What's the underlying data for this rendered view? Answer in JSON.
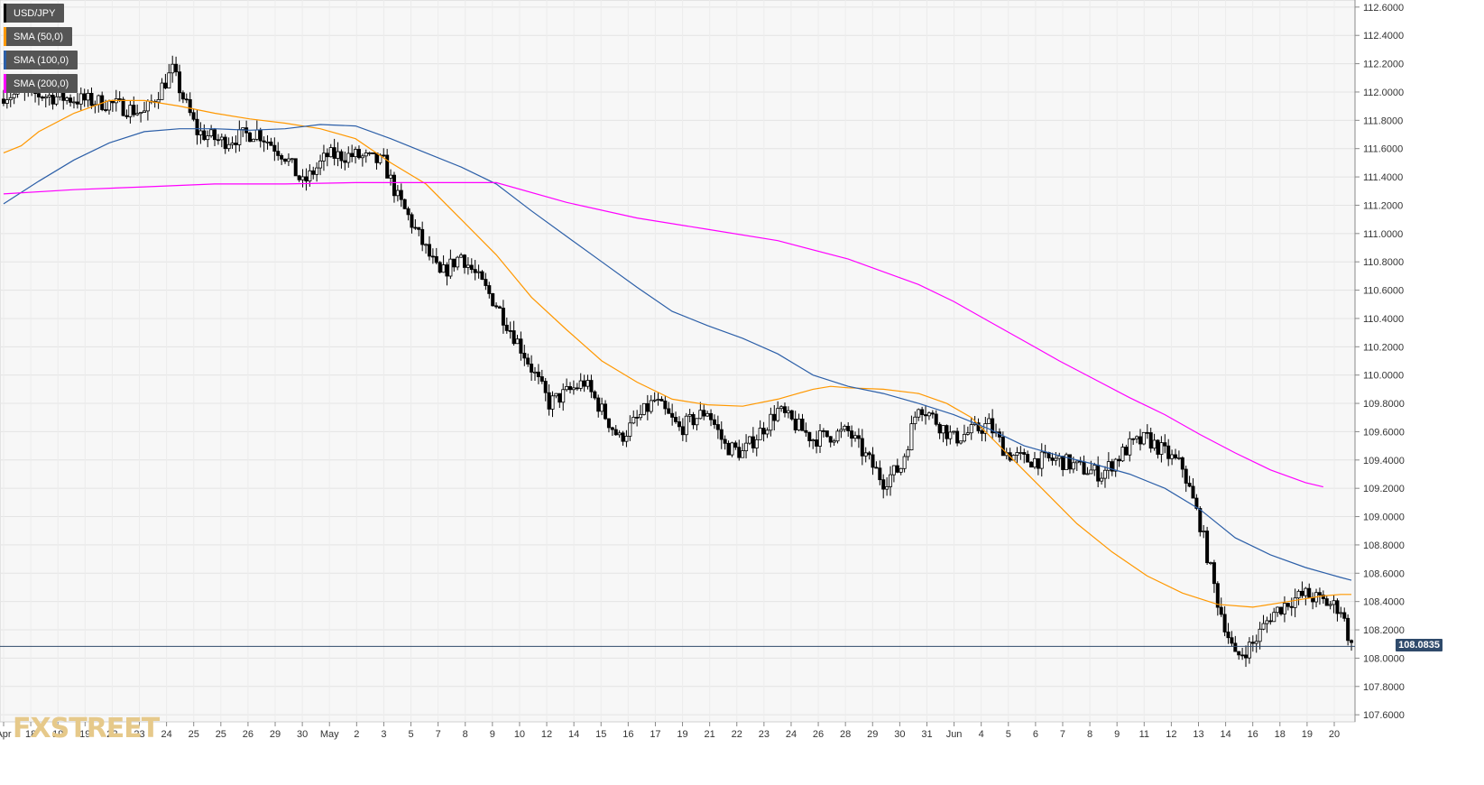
{
  "legend": [
    {
      "label": "USD/JPY",
      "color": "#000000"
    },
    {
      "label": "SMA (50,0)",
      "color": "#ff9800"
    },
    {
      "label": "SMA (100,0)",
      "color": "#2c5fa8"
    },
    {
      "label": "SMA (200,0)",
      "color": "#ff00ff"
    }
  ],
  "watermark": {
    "fx": "FX",
    "street": "STREET"
  },
  "current_price_label": "108.0835",
  "chart_data": {
    "type": "candlestick",
    "symbol": "USD/JPY",
    "ylim": [
      107.55,
      112.65
    ],
    "y_ticks": [
      "112.6000",
      "112.4000",
      "112.2000",
      "112.0000",
      "111.8000",
      "111.6000",
      "111.4000",
      "111.2000",
      "111.0000",
      "110.8000",
      "110.6000",
      "110.4000",
      "110.2000",
      "110.0000",
      "109.8000",
      "109.6000",
      "109.4000",
      "109.2000",
      "109.0000",
      "108.8000",
      "108.6000",
      "108.4000",
      "108.2000",
      "108.0000",
      "107.8000",
      "107.6000"
    ],
    "x_ticks": [
      "Apr",
      "18",
      "19",
      "19",
      "22",
      "23",
      "24",
      "25",
      "25",
      "26",
      "29",
      "30",
      "May",
      "2",
      "3",
      "5",
      "7",
      "8",
      "9",
      "10",
      "12",
      "14",
      "15",
      "16",
      "17",
      "19",
      "21",
      "22",
      "23",
      "24",
      "26",
      "28",
      "29",
      "30",
      "31",
      "Jun",
      "4",
      "5",
      "6",
      "7",
      "8",
      "9",
      "11",
      "12",
      "13",
      "14",
      "16",
      "18",
      "19",
      "20"
    ],
    "current_price": 108.0835,
    "grid": true,
    "legend_position": "top-left",
    "series": [
      {
        "name": "SMA (50,0)",
        "color": "#ff9800",
        "points": [
          [
            0,
            111.57
          ],
          [
            5,
            111.62
          ],
          [
            10,
            111.72
          ],
          [
            20,
            111.85
          ],
          [
            30,
            111.94
          ],
          [
            40,
            111.94
          ],
          [
            50,
            111.9
          ],
          [
            60,
            111.85
          ],
          [
            70,
            111.81
          ],
          [
            80,
            111.78
          ],
          [
            90,
            111.74
          ],
          [
            100,
            111.67
          ],
          [
            110,
            111.5
          ],
          [
            120,
            111.35
          ],
          [
            130,
            111.1
          ],
          [
            140,
            110.85
          ],
          [
            150,
            110.55
          ],
          [
            160,
            110.32
          ],
          [
            170,
            110.1
          ],
          [
            180,
            109.95
          ],
          [
            190,
            109.83
          ],
          [
            200,
            109.79
          ],
          [
            210,
            109.78
          ],
          [
            220,
            109.83
          ],
          [
            230,
            109.9
          ],
          [
            235,
            109.92
          ],
          [
            240,
            109.91
          ],
          [
            250,
            109.9
          ],
          [
            260,
            109.87
          ],
          [
            268,
            109.8
          ],
          [
            275,
            109.7
          ],
          [
            285,
            109.45
          ],
          [
            295,
            109.2
          ],
          [
            305,
            108.95
          ],
          [
            315,
            108.75
          ],
          [
            325,
            108.58
          ],
          [
            335,
            108.46
          ],
          [
            345,
            108.38
          ],
          [
            355,
            108.36
          ],
          [
            365,
            108.4
          ],
          [
            375,
            108.44
          ],
          [
            380,
            108.45
          ],
          [
            383,
            108.45
          ]
        ]
      },
      {
        "name": "SMA (100,0)",
        "color": "#2c5fa8",
        "points": [
          [
            0,
            111.21
          ],
          [
            10,
            111.37
          ],
          [
            20,
            111.52
          ],
          [
            30,
            111.64
          ],
          [
            40,
            111.72
          ],
          [
            50,
            111.74
          ],
          [
            60,
            111.74
          ],
          [
            70,
            111.73
          ],
          [
            80,
            111.74
          ],
          [
            90,
            111.77
          ],
          [
            100,
            111.76
          ],
          [
            110,
            111.67
          ],
          [
            120,
            111.57
          ],
          [
            130,
            111.47
          ],
          [
            140,
            111.35
          ],
          [
            150,
            111.16
          ],
          [
            160,
            110.98
          ],
          [
            170,
            110.8
          ],
          [
            180,
            110.62
          ],
          [
            190,
            110.45
          ],
          [
            200,
            110.35
          ],
          [
            210,
            110.26
          ],
          [
            220,
            110.15
          ],
          [
            230,
            110.0
          ],
          [
            240,
            109.92
          ],
          [
            250,
            109.87
          ],
          [
            260,
            109.8
          ],
          [
            270,
            109.72
          ],
          [
            280,
            109.62
          ],
          [
            290,
            109.5
          ],
          [
            300,
            109.43
          ],
          [
            310,
            109.37
          ],
          [
            320,
            109.3
          ],
          [
            330,
            109.2
          ],
          [
            340,
            109.05
          ],
          [
            350,
            108.85
          ],
          [
            360,
            108.73
          ],
          [
            370,
            108.64
          ],
          [
            380,
            108.57
          ],
          [
            383,
            108.55
          ]
        ]
      },
      {
        "name": "SMA (200,0)",
        "color": "#ff00ff",
        "points": [
          [
            0,
            111.28
          ],
          [
            20,
            111.31
          ],
          [
            40,
            111.33
          ],
          [
            60,
            111.35
          ],
          [
            80,
            111.35
          ],
          [
            100,
            111.36
          ],
          [
            120,
            111.36
          ],
          [
            140,
            111.36
          ],
          [
            160,
            111.22
          ],
          [
            180,
            111.11
          ],
          [
            200,
            111.03
          ],
          [
            220,
            110.95
          ],
          [
            240,
            110.82
          ],
          [
            260,
            110.64
          ],
          [
            270,
            110.52
          ],
          [
            280,
            110.38
          ],
          [
            290,
            110.24
          ],
          [
            300,
            110.1
          ],
          [
            310,
            109.97
          ],
          [
            320,
            109.84
          ],
          [
            330,
            109.72
          ],
          [
            340,
            109.58
          ],
          [
            350,
            109.45
          ],
          [
            360,
            109.33
          ],
          [
            370,
            109.24
          ],
          [
            375,
            109.21
          ]
        ]
      }
    ]
  }
}
